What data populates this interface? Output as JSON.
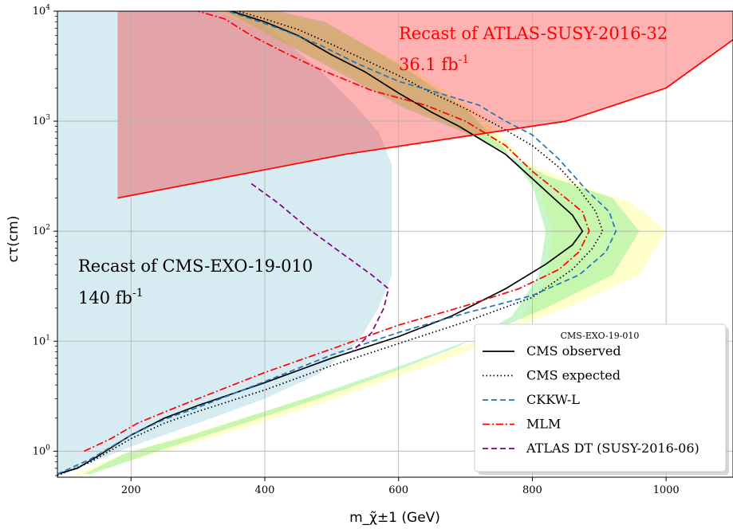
{
  "chart_data": {
    "type": "line",
    "xlabel": "m_χ̃±1 (GeV)",
    "ylabel": "cτ(cm)",
    "xlim": [
      90,
      1100
    ],
    "ylim": [
      0.58,
      10000
    ],
    "yscale": "log",
    "grid": true,
    "x_ticks": [
      200,
      400,
      600,
      800,
      1000
    ],
    "y_ticks": [
      {
        "value": 1,
        "label": "10^0"
      },
      {
        "value": 10,
        "label": "10^1"
      },
      {
        "value": 100,
        "label": "10^2"
      },
      {
        "value": 1000,
        "label": "10^3"
      },
      {
        "value": 10000,
        "label": "10^4"
      }
    ],
    "annotations": [
      {
        "text": "Recast of ATLAS-SUSY-2016-32",
        "color": "#ff0000"
      },
      {
        "text": "36.1 fb^-1",
        "color": "#ff0000"
      },
      {
        "text": "Recast of CMS-EXO-19-010",
        "color": "#000000"
      },
      {
        "text": "140 fb^-1",
        "color": "#000000"
      }
    ],
    "legend": {
      "title": "CMS-EXO-19-010",
      "placement": "lower-right"
    },
    "regions": [
      {
        "name": "CMS-EXO-19-010 recast excluded region",
        "color": "#add8e6",
        "points": [
          [
            90,
            0.58
          ],
          [
            90,
            10000
          ],
          [
            370,
            10000
          ],
          [
            420,
            6000
          ],
          [
            480,
            3000
          ],
          [
            530,
            1500
          ],
          [
            570,
            800
          ],
          [
            590,
            400
          ],
          [
            590,
            100
          ],
          [
            590,
            40
          ],
          [
            570,
            20
          ],
          [
            540,
            10
          ],
          [
            480,
            5
          ],
          [
            400,
            3
          ],
          [
            300,
            1.8
          ],
          [
            200,
            1.1
          ],
          [
            120,
            0.7
          ],
          [
            90,
            0.6
          ]
        ]
      },
      {
        "name": "CMS expected ±2σ band",
        "color": "#ffff99",
        "points": [
          [
            330,
            10000
          ],
          [
            470,
            4000
          ],
          [
            600,
            1500
          ],
          [
            700,
            800
          ],
          [
            800,
            400
          ],
          [
            880,
            250
          ],
          [
            950,
            180
          ],
          [
            1000,
            100
          ],
          [
            960,
            40
          ],
          [
            850,
            20
          ],
          [
            750,
            12
          ],
          [
            650,
            7
          ],
          [
            530,
            4
          ],
          [
            420,
            2.5
          ],
          [
            300,
            1.5
          ],
          [
            200,
            1
          ],
          [
            110,
            0.6
          ],
          [
            120,
            0.6
          ],
          [
            250,
            1
          ],
          [
            380,
            1.7
          ],
          [
            490,
            2.8
          ],
          [
            600,
            4.8
          ],
          [
            700,
            8
          ],
          [
            780,
            15
          ],
          [
            820,
            35
          ],
          [
            830,
            100
          ],
          [
            810,
            250
          ],
          [
            780,
            500
          ],
          [
            720,
            1200
          ],
          [
            620,
            3000
          ],
          [
            500,
            7000
          ],
          [
            410,
            10000
          ]
        ]
      },
      {
        "name": "CMS expected ±1σ band",
        "color": "#90ee90",
        "points": [
          [
            340,
            10000
          ],
          [
            480,
            3500
          ],
          [
            610,
            1300
          ],
          [
            720,
            700
          ],
          [
            820,
            320
          ],
          [
            920,
            200
          ],
          [
            960,
            100
          ],
          [
            920,
            40
          ],
          [
            820,
            20
          ],
          [
            720,
            11
          ],
          [
            620,
            6.5
          ],
          [
            510,
            3.8
          ],
          [
            400,
            2.3
          ],
          [
            290,
            1.4
          ],
          [
            190,
            0.95
          ],
          [
            130,
            0.62
          ],
          [
            140,
            0.62
          ],
          [
            250,
            1.05
          ],
          [
            370,
            1.8
          ],
          [
            480,
            3
          ],
          [
            590,
            5.2
          ],
          [
            690,
            9
          ],
          [
            770,
            17
          ],
          [
            810,
            40
          ],
          [
            820,
            100
          ],
          [
            800,
            260
          ],
          [
            760,
            550
          ],
          [
            700,
            1300
          ],
          [
            600,
            3300
          ],
          [
            490,
            8000
          ],
          [
            420,
            10000
          ]
        ]
      },
      {
        "name": "ATLAS-SUSY-2016-32 recast excluded region",
        "color": "#ff0000",
        "opacity": 0.3,
        "points": [
          [
            180,
            200
          ],
          [
            520,
            500
          ],
          [
            850,
            1000
          ],
          [
            1000,
            2000
          ],
          [
            1100,
            5500
          ],
          [
            1100,
            10000
          ],
          [
            180,
            10000
          ]
        ]
      }
    ],
    "series": [
      {
        "name": "CMS observed",
        "color": "#000000",
        "dash": "solid",
        "in_legend": true,
        "points": [
          [
            90,
            0.62
          ],
          [
            120,
            0.7
          ],
          [
            150,
            0.9
          ],
          [
            200,
            1.4
          ],
          [
            250,
            2
          ],
          [
            300,
            2.6
          ],
          [
            400,
            4.2
          ],
          [
            500,
            7
          ],
          [
            600,
            11
          ],
          [
            680,
            17
          ],
          [
            760,
            30
          ],
          [
            820,
            50
          ],
          [
            860,
            75
          ],
          [
            875,
            100
          ],
          [
            860,
            140
          ],
          [
            840,
            180
          ],
          [
            800,
            300
          ],
          [
            760,
            500
          ],
          [
            720,
            700
          ],
          [
            690,
            900
          ],
          [
            650,
            1200
          ],
          [
            600,
            1800
          ],
          [
            550,
            2800
          ],
          [
            500,
            4000
          ],
          [
            450,
            6000
          ],
          [
            400,
            8000
          ],
          [
            350,
            10000
          ]
        ]
      },
      {
        "name": "CMS expected",
        "color": "#000000",
        "dash": "dotted",
        "in_legend": true,
        "points": [
          [
            90,
            0.6
          ],
          [
            140,
            0.8
          ],
          [
            200,
            1.3
          ],
          [
            250,
            1.8
          ],
          [
            300,
            2.3
          ],
          [
            400,
            3.6
          ],
          [
            500,
            6
          ],
          [
            600,
            9.5
          ],
          [
            700,
            15
          ],
          [
            800,
            25
          ],
          [
            860,
            45
          ],
          [
            890,
            70
          ],
          [
            905,
            100
          ],
          [
            895,
            150
          ],
          [
            870,
            240
          ],
          [
            840,
            380
          ],
          [
            800,
            600
          ],
          [
            750,
            900
          ],
          [
            700,
            1300
          ],
          [
            650,
            1800
          ],
          [
            600,
            2600
          ],
          [
            550,
            3600
          ],
          [
            500,
            5000
          ],
          [
            450,
            6800
          ],
          [
            400,
            8500
          ],
          [
            360,
            10000
          ]
        ]
      },
      {
        "name": "CKKW-L",
        "color": "#1f77b4",
        "dash": "dashed",
        "in_legend": true,
        "points": [
          [
            90,
            0.62
          ],
          [
            140,
            0.85
          ],
          [
            200,
            1.4
          ],
          [
            250,
            1.95
          ],
          [
            300,
            2.5
          ],
          [
            400,
            4.3
          ],
          [
            500,
            7.5
          ],
          [
            600,
            12
          ],
          [
            700,
            18
          ],
          [
            800,
            26
          ],
          [
            870,
            40
          ],
          [
            910,
            65
          ],
          [
            925,
            100
          ],
          [
            915,
            150
          ],
          [
            880,
            240
          ],
          [
            840,
            450
          ],
          [
            800,
            750
          ],
          [
            760,
            1000
          ],
          [
            720,
            1400
          ],
          [
            660,
            1800
          ],
          [
            600,
            2300
          ],
          [
            540,
            3300
          ],
          [
            480,
            5000
          ],
          [
            420,
            7000
          ],
          [
            380,
            8500
          ],
          [
            345,
            10000
          ]
        ]
      },
      {
        "name": "MLM",
        "color": "#ff0000",
        "dash": "dashdot",
        "in_legend": true,
        "points": [
          [
            130,
            1
          ],
          [
            170,
            1.3
          ],
          [
            210,
            1.8
          ],
          [
            260,
            2.4
          ],
          [
            300,
            3
          ],
          [
            400,
            5.2
          ],
          [
            500,
            8.5
          ],
          [
            600,
            14
          ],
          [
            700,
            21
          ],
          [
            780,
            30
          ],
          [
            840,
            45
          ],
          [
            870,
            65
          ],
          [
            885,
            100
          ],
          [
            875,
            150
          ],
          [
            850,
            200
          ],
          [
            800,
            350
          ],
          [
            760,
            600
          ],
          [
            700,
            1000
          ],
          [
            640,
            1400
          ],
          [
            560,
            1900
          ],
          [
            480,
            3000
          ],
          [
            420,
            4500
          ],
          [
            380,
            6000
          ],
          [
            340,
            8500
          ],
          [
            300,
            10000
          ]
        ]
      },
      {
        "name": "ATLAS DT (SUSY-2016-06)",
        "color": "#800080",
        "dash": "dashed",
        "in_legend": true,
        "points": [
          [
            380,
            270
          ],
          [
            420,
            180
          ],
          [
            470,
            100
          ],
          [
            520,
            60
          ],
          [
            560,
            40
          ],
          [
            585,
            30
          ],
          [
            578,
            20
          ],
          [
            560,
            12
          ],
          [
            530,
            8
          ]
        ]
      },
      {
        "name": "ATLAS-SUSY-2016-32 boundary",
        "color": "#ff0000",
        "dash": "solid",
        "in_legend": false,
        "points": [
          [
            180,
            200
          ],
          [
            520,
            500
          ],
          [
            850,
            1000
          ],
          [
            1000,
            2000
          ],
          [
            1100,
            5500
          ]
        ]
      }
    ]
  }
}
